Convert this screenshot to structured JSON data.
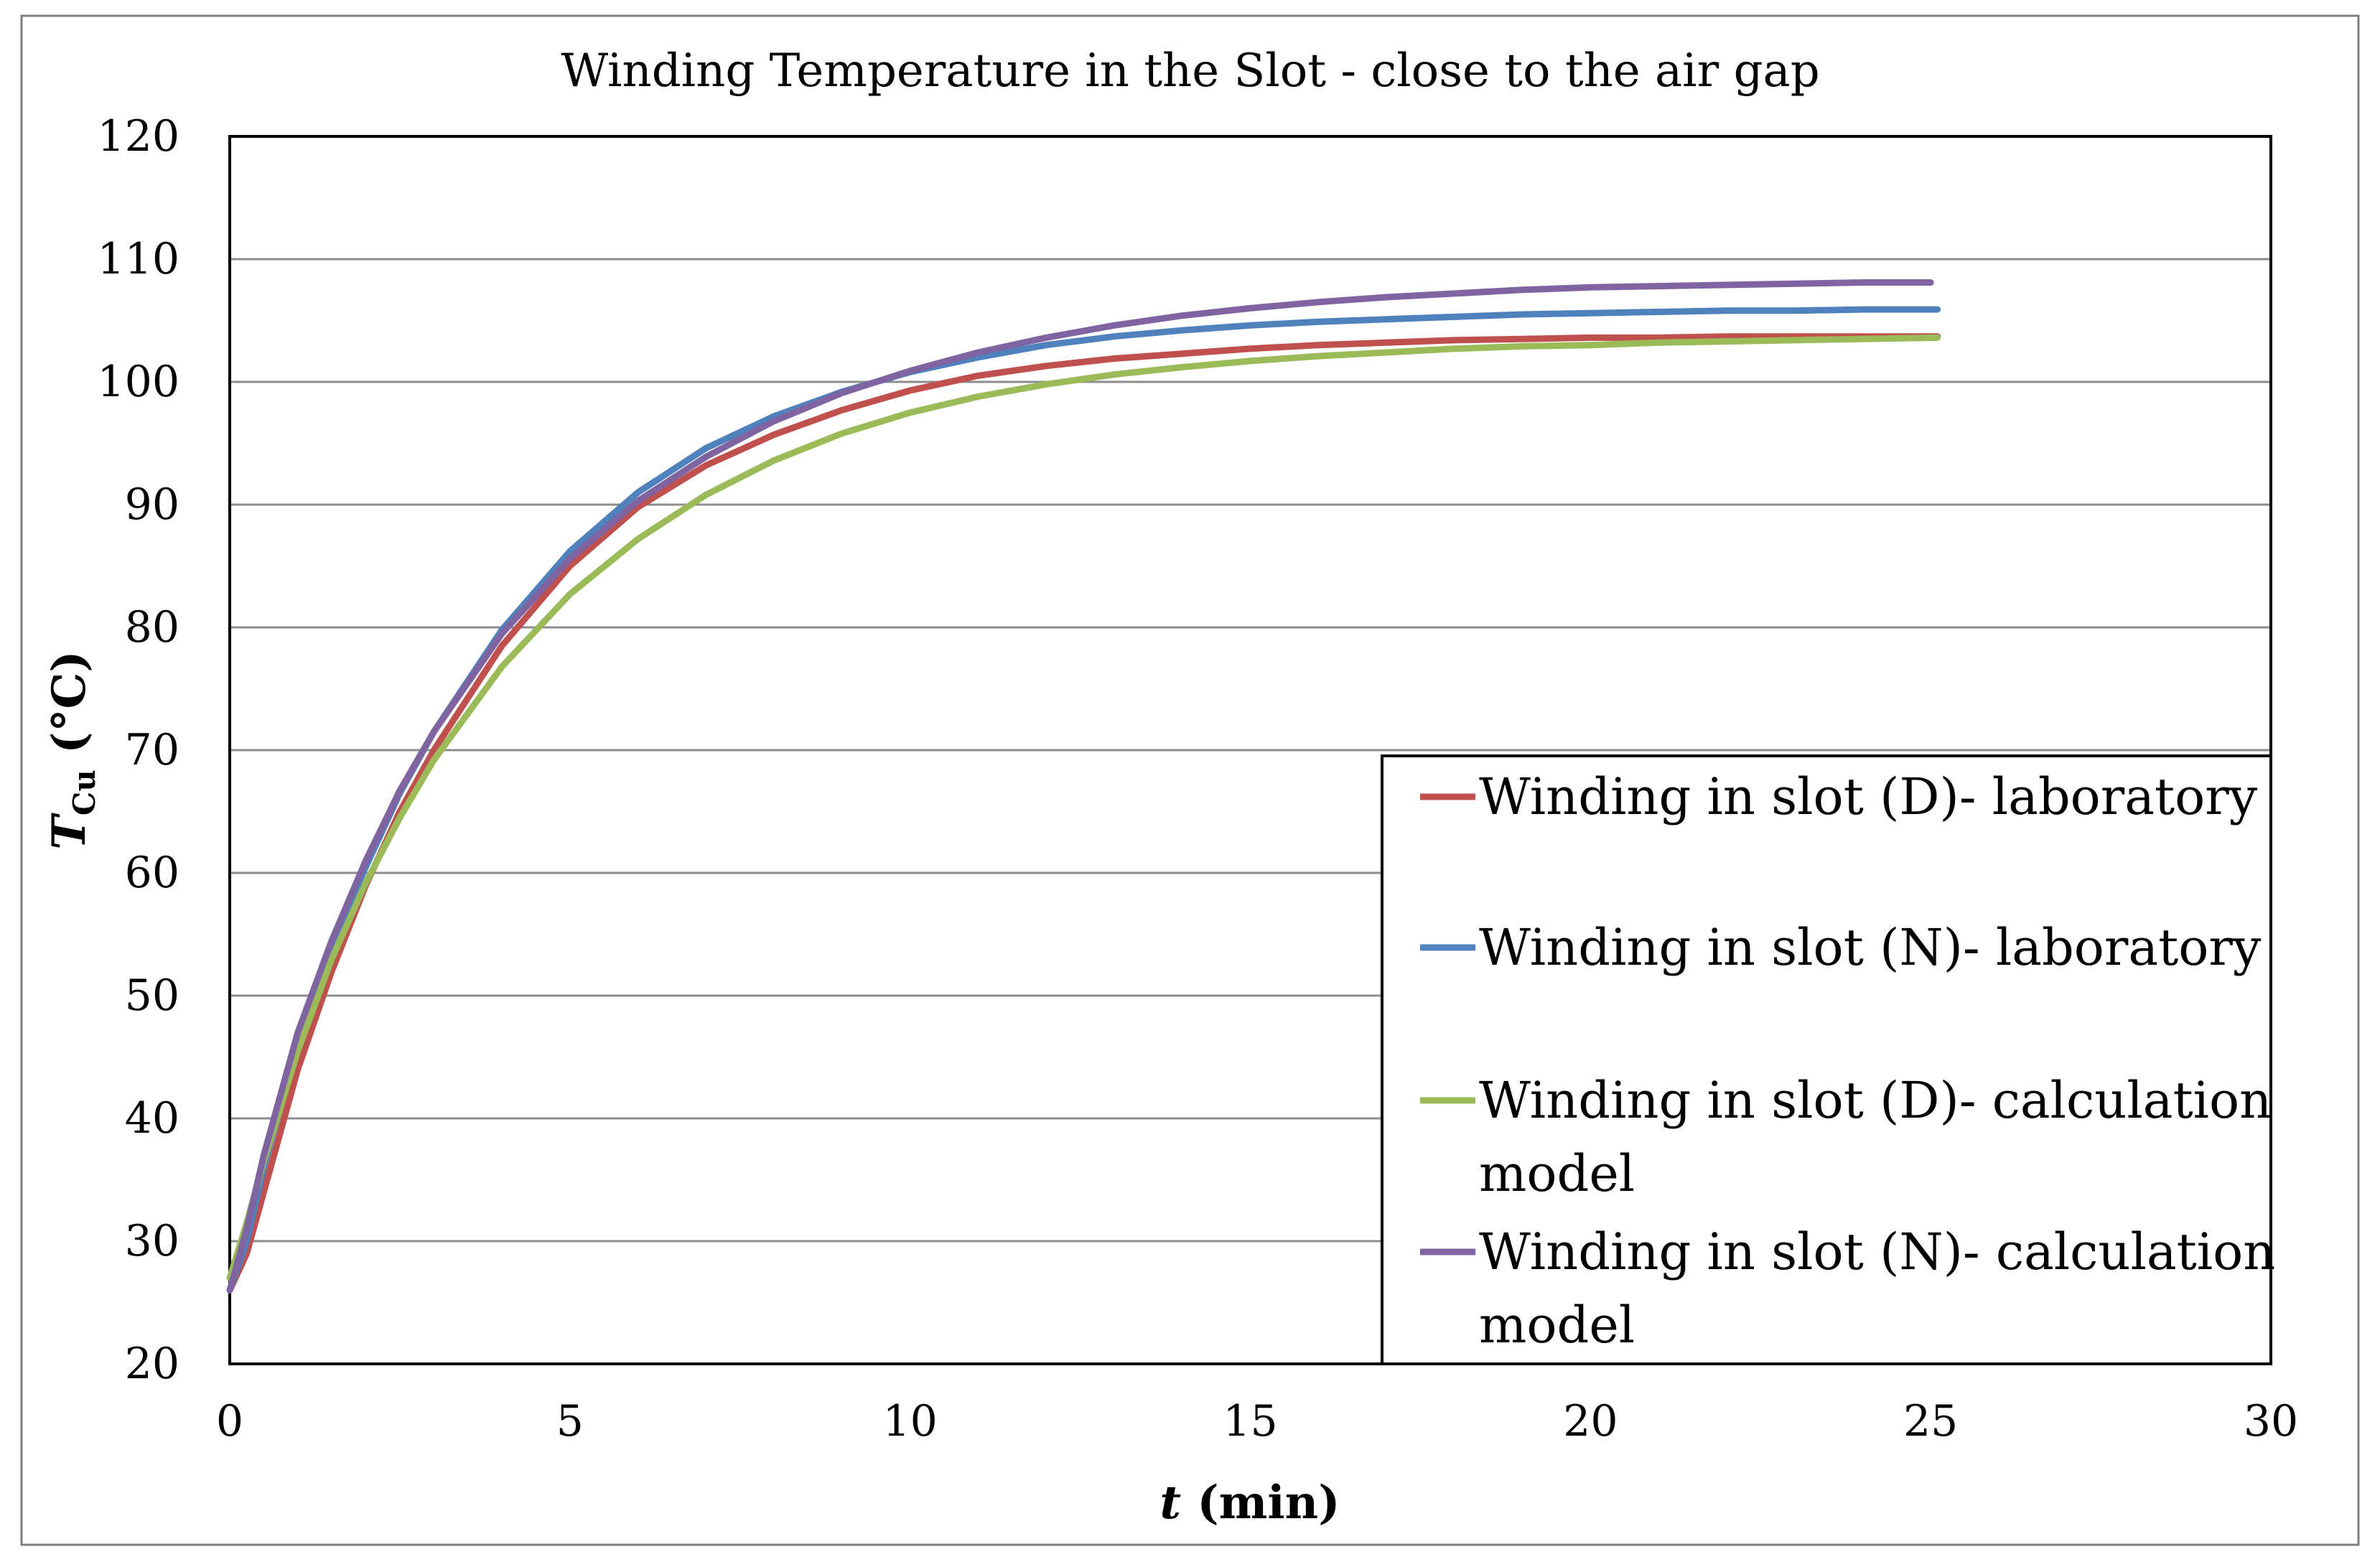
{
  "chart_data": {
    "type": "line",
    "title": "Winding Temperature in the Slot - close to the air gap",
    "xlabel": {
      "var": "t",
      "rest": " (min)"
    },
    "ylabel": {
      "var": "T",
      "sub": "Cu",
      "rest": " (°C)"
    },
    "xlim": [
      0,
      30
    ],
    "ylim": [
      20,
      120
    ],
    "xticks": [
      0,
      5,
      10,
      15,
      20,
      25,
      30
    ],
    "yticks": [
      20,
      30,
      40,
      50,
      60,
      70,
      80,
      90,
      100,
      110,
      120
    ],
    "xtick_labels": [
      "0",
      "5",
      "10",
      "15",
      "20",
      "25",
      "30"
    ],
    "ytick_labels": [
      "20",
      "30",
      "40",
      "50",
      "60",
      "70",
      "80",
      "90",
      "100",
      "110",
      "120"
    ],
    "grid": true,
    "legend_position": "lower-right",
    "series": [
      {
        "name": "Winding in slot (D)- laboratory",
        "legend_lines": [
          "Winding in slot (D)- laboratory"
        ],
        "color": "#c0504d",
        "x": [
          0,
          0.25,
          0.5,
          1,
          1.5,
          2,
          2.5,
          3,
          4,
          5,
          6,
          7,
          8,
          9,
          10,
          11,
          12,
          13,
          14,
          15,
          16,
          17,
          18,
          19,
          20,
          21,
          22,
          23,
          24,
          25.1
        ],
        "y": [
          26,
          29,
          34,
          44,
          52,
          59,
          65,
          70,
          78.5,
          85,
          89.8,
          93.2,
          95.7,
          97.7,
          99.3,
          100.5,
          101.3,
          101.9,
          102.3,
          102.7,
          103.0,
          103.2,
          103.4,
          103.5,
          103.6,
          103.6,
          103.7,
          103.7,
          103.7,
          103.7
        ]
      },
      {
        "name": "Winding in slot (N)- laboratory",
        "legend_lines": [
          "Winding in slot (N)- laboratory"
        ],
        "color": "#4f81bd",
        "x": [
          0,
          0.25,
          0.5,
          1,
          1.5,
          2,
          2.5,
          3,
          4,
          5,
          6,
          7,
          8,
          9,
          10,
          11,
          12,
          13,
          14,
          15,
          16,
          17,
          18,
          19,
          20,
          21,
          22,
          23,
          24,
          25.1
        ],
        "y": [
          26,
          30,
          36,
          46,
          54,
          60.5,
          66.5,
          71.5,
          79.8,
          86.2,
          91,
          94.6,
          97.2,
          99.2,
          100.8,
          102.0,
          103.0,
          103.7,
          104.2,
          104.6,
          104.9,
          105.1,
          105.3,
          105.5,
          105.6,
          105.7,
          105.8,
          105.8,
          105.9,
          105.9
        ]
      },
      {
        "name": "Winding in slot (D)- calculation model",
        "legend_lines": [
          "Winding in slot (D)- calculation",
          "model"
        ],
        "color": "#9bbb59",
        "x": [
          0,
          0.25,
          0.5,
          1,
          1.5,
          2,
          2.5,
          3,
          4,
          5,
          6,
          7,
          8,
          9,
          10,
          11,
          12,
          13,
          14,
          15,
          16,
          17,
          18,
          19,
          20,
          21,
          22,
          23,
          24,
          25.1
        ],
        "y": [
          27,
          31.5,
          36.5,
          45.5,
          53,
          59.2,
          64.5,
          69.2,
          76.8,
          82.7,
          87.2,
          90.8,
          93.6,
          95.8,
          97.5,
          98.8,
          99.8,
          100.6,
          101.2,
          101.7,
          102.1,
          102.4,
          102.7,
          102.9,
          103.0,
          103.2,
          103.3,
          103.4,
          103.5,
          103.6
        ]
      },
      {
        "name": "Winding in slot (N)- calculation model",
        "legend_lines": [
          "Winding in slot (N)- calculation",
          "model"
        ],
        "color": "#8064a2",
        "x": [
          0,
          0.25,
          0.5,
          1,
          1.5,
          2,
          2.5,
          3,
          4,
          5,
          6,
          7,
          8,
          9,
          10,
          11,
          12,
          13,
          14,
          15,
          16,
          17,
          18,
          19,
          20,
          21,
          22,
          23,
          24,
          25
        ],
        "y": [
          26,
          31,
          37,
          47,
          54.5,
          61,
          66.7,
          71.5,
          79.5,
          85.6,
          90.3,
          93.9,
          96.8,
          99.1,
          100.9,
          102.4,
          103.6,
          104.6,
          105.4,
          106.0,
          106.5,
          106.9,
          107.2,
          107.5,
          107.7,
          107.8,
          107.9,
          108.0,
          108.1,
          108.1
        ]
      }
    ]
  }
}
